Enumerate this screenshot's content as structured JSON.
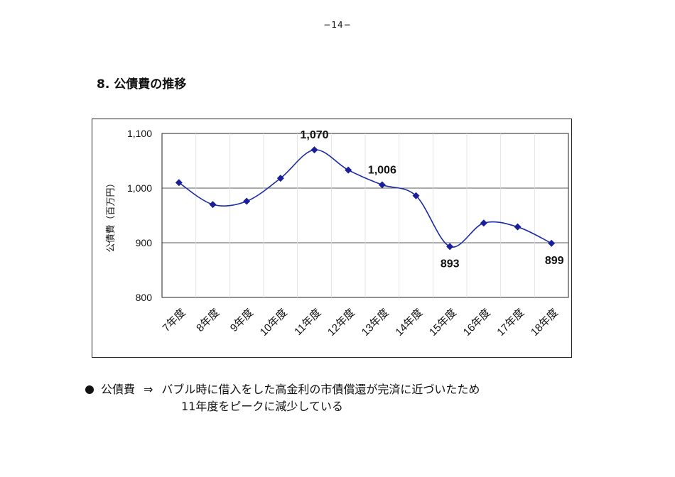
{
  "page_number": "−14−",
  "heading": "8. 公債費の推移",
  "chart_data": {
    "type": "line",
    "title": "",
    "xlabel": "",
    "ylabel": "公債費（百万円）",
    "categories": [
      "7年度",
      "8年度",
      "9年度",
      "10年度",
      "11年度",
      "12年度",
      "13年度",
      "14年度",
      "15年度",
      "16年度",
      "17年度",
      "18年度"
    ],
    "series": [
      {
        "values": [
          1010,
          970,
          976,
          1018,
          1070,
          1033,
          1006,
          986,
          893,
          936,
          929,
          899
        ]
      }
    ],
    "ylim": [
      800,
      1100
    ],
    "yticks": [
      800,
      900,
      1000,
      1100
    ],
    "ytick_labels": [
      "800",
      "900",
      "1,000",
      "1,100"
    ],
    "data_labels": [
      {
        "category": "11年度",
        "text": "1,070"
      },
      {
        "category": "13年度",
        "text": "1,006"
      },
      {
        "category": "15年度",
        "text": "893"
      },
      {
        "category": "18年度",
        "text": "899"
      }
    ],
    "smooth": true,
    "grid": true,
    "legend": "none",
    "line_color": "#1a2aa8",
    "marker": "diamond",
    "marker_color": "#1a1f99"
  },
  "note": {
    "label": "公債費",
    "arrow": "⇒",
    "line1": "バブル時に借入をした高金利の市債償還が完済に近づいたため",
    "line2": "11年度をピークに減少している"
  }
}
